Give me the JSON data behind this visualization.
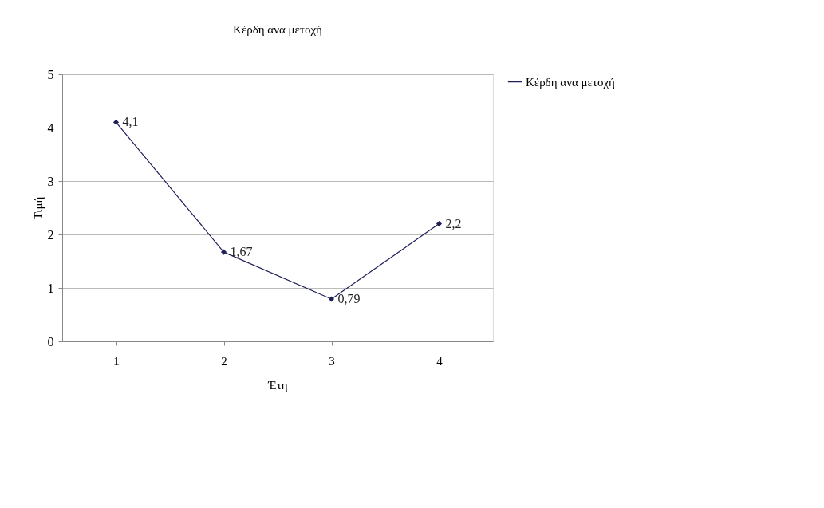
{
  "chart_data": {
    "type": "line",
    "title": "Κέρδη ανα μετοχή",
    "xlabel": "Έτη",
    "ylabel": "Τιμή",
    "categories": [
      "1",
      "2",
      "3",
      "4"
    ],
    "series": [
      {
        "name": "Κέρδη ανα μετοχή",
        "color": "#1f1f5a",
        "values": [
          4.1,
          1.67,
          0.79,
          2.2
        ],
        "value_labels": [
          "4,1",
          "1,67",
          "0,79",
          "2,2"
        ]
      }
    ],
    "ylim": [
      0,
      5
    ],
    "yticks": [
      0,
      1,
      2,
      3,
      4,
      5
    ],
    "grid": "y",
    "legend": "right",
    "marker": "diamond",
    "line_style": "solid"
  }
}
